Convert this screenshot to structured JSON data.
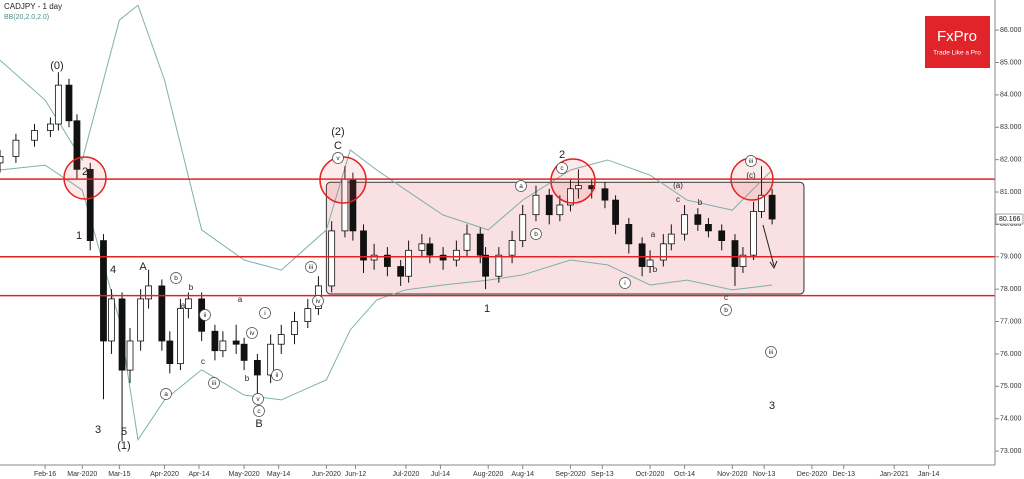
{
  "chart_data": {
    "type": "candlestick",
    "title": "CADJPY - 1 day",
    "subtitle": "BB(20,2.0,2.0)",
    "brand": "FxPro",
    "brand_tagline": "Trade Like a Pro",
    "xlim": [
      "2020-01-30",
      "2021-02-08"
    ],
    "xticks": [
      {
        "value": "2020-02-16",
        "label": "Feb-16"
      },
      {
        "value": "2020-03-01",
        "label": "Mar-2020"
      },
      {
        "value": "2020-03-15",
        "label": "Mar-15"
      },
      {
        "value": "2020-04-01",
        "label": "Apr-2020"
      },
      {
        "value": "2020-04-14",
        "label": "Apr-14"
      },
      {
        "value": "2020-05-01",
        "label": "May-2020"
      },
      {
        "value": "2020-05-14",
        "label": "May-14"
      },
      {
        "value": "2020-06-01",
        "label": "Jun-2020"
      },
      {
        "value": "2020-06-12",
        "label": "Jun-12"
      },
      {
        "value": "2020-07-01",
        "label": "Jul-2020"
      },
      {
        "value": "2020-07-14",
        "label": "Jul-14"
      },
      {
        "value": "2020-08-01",
        "label": "Aug-2020"
      },
      {
        "value": "2020-08-14",
        "label": "Aug-14"
      },
      {
        "value": "2020-09-01",
        "label": "Sep-2020"
      },
      {
        "value": "2020-09-13",
        "label": "Sep-13"
      },
      {
        "value": "2020-10-01",
        "label": "Oct-2020"
      },
      {
        "value": "2020-10-14",
        "label": "Oct-14"
      },
      {
        "value": "2020-11-01",
        "label": "Nov-2020"
      },
      {
        "value": "2020-11-13",
        "label": "Nov-13"
      },
      {
        "value": "2020-12-01",
        "label": "Dec-2020"
      },
      {
        "value": "2020-12-13",
        "label": "Dec-13"
      },
      {
        "value": "2021-01-01",
        "label": "Jan-2021"
      },
      {
        "value": "2021-01-14",
        "label": "Jan-14"
      }
    ],
    "ylim": [
      72.57,
      86.93
    ],
    "yticks": [
      {
        "value": 73,
        "label": "73.000"
      },
      {
        "value": 74,
        "label": "74.000"
      },
      {
        "value": 75,
        "label": "75.000"
      },
      {
        "value": 76,
        "label": "76.000"
      },
      {
        "value": 77,
        "label": "77.000"
      },
      {
        "value": 78,
        "label": "78.000"
      },
      {
        "value": 79,
        "label": "79.000"
      },
      {
        "value": 80,
        "label": "80.000"
      },
      {
        "value": 81,
        "label": "81.000"
      },
      {
        "value": 82,
        "label": "82.000"
      },
      {
        "value": 83,
        "label": "83.000"
      },
      {
        "value": 84,
        "label": "84.000"
      },
      {
        "value": 85,
        "label": "85.000"
      },
      {
        "value": 86,
        "label": "86.000"
      }
    ],
    "last_price": {
      "value": 80.166,
      "label": "80.166"
    },
    "up_color": "#ffffff",
    "down_color": "#111111",
    "x": [
      "2020-01-30",
      "2020-02-05",
      "2020-02-12",
      "2020-02-18",
      "2020-02-21",
      "2020-02-25",
      "2020-02-28",
      "2020-03-04",
      "2020-03-09",
      "2020-03-12",
      "2020-03-16",
      "2020-03-19",
      "2020-03-23",
      "2020-03-26",
      "2020-03-31",
      "2020-04-03",
      "2020-04-07",
      "2020-04-10",
      "2020-04-15",
      "2020-04-20",
      "2020-04-23",
      "2020-04-28",
      "2020-05-01",
      "2020-05-06",
      "2020-05-11",
      "2020-05-15",
      "2020-05-20",
      "2020-05-25",
      "2020-05-29",
      "2020-06-03",
      "2020-06-08",
      "2020-06-11",
      "2020-06-15",
      "2020-06-19",
      "2020-06-24",
      "2020-06-29",
      "2020-07-02",
      "2020-07-07",
      "2020-07-10",
      "2020-07-15",
      "2020-07-20",
      "2020-07-24",
      "2020-07-29",
      "2020-07-31",
      "2020-08-05",
      "2020-08-10",
      "2020-08-14",
      "2020-08-19",
      "2020-08-24",
      "2020-08-28",
      "2020-09-01",
      "2020-09-04",
      "2020-09-09",
      "2020-09-14",
      "2020-09-18",
      "2020-09-23",
      "2020-09-28",
      "2020-10-01",
      "2020-10-06",
      "2020-10-09",
      "2020-10-14",
      "2020-10-19",
      "2020-10-23",
      "2020-10-28",
      "2020-11-02",
      "2020-11-05",
      "2020-11-09",
      "2020-11-12",
      "2020-11-16"
    ],
    "open": [
      81.9,
      82.1,
      82.6,
      82.9,
      83.1,
      84.3,
      83.2,
      81.7,
      79.5,
      76.4,
      77.7,
      75.5,
      76.4,
      77.7,
      78.1,
      76.4,
      75.7,
      77.4,
      77.7,
      76.7,
      76.1,
      76.4,
      76.3,
      75.8,
      75.35,
      76.3,
      76.6,
      77.0,
      77.4,
      78.1,
      79.8,
      81.4,
      79.8,
      78.9,
      79.05,
      78.7,
      78.4,
      79.2,
      79.4,
      79.05,
      78.9,
      79.2,
      79.7,
      79.05,
      78.4,
      79.05,
      79.5,
      80.3,
      80.9,
      80.3,
      80.6,
      81.1,
      81.2,
      81.1,
      80.75,
      80.0,
      79.4,
      78.7,
      78.9,
      79.4,
      79.7,
      80.3,
      80.0,
      79.8,
      79.5,
      78.7,
      79.05,
      80.4,
      80.9
    ],
    "high": [
      82.3,
      82.8,
      83.1,
      83.3,
      84.7,
      84.5,
      83.4,
      81.9,
      79.7,
      78.0,
      77.9,
      76.8,
      78.0,
      78.6,
      78.3,
      76.7,
      77.7,
      77.9,
      77.9,
      76.9,
      76.7,
      76.9,
      76.5,
      76.0,
      76.6,
      76.9,
      77.3,
      77.7,
      78.4,
      80.1,
      81.8,
      81.6,
      80.0,
      79.4,
      79.3,
      78.9,
      79.5,
      79.7,
      79.6,
      79.3,
      79.5,
      80.0,
      79.9,
      79.3,
      79.3,
      79.8,
      80.6,
      81.2,
      81.1,
      80.9,
      81.4,
      81.7,
      81.4,
      81.3,
      80.9,
      80.2,
      79.6,
      79.2,
      79.7,
      80.0,
      80.6,
      80.5,
      80.2,
      80.0,
      79.7,
      79.3,
      80.7,
      81.8,
      81.1
    ],
    "low": [
      81.6,
      81.9,
      82.4,
      82.7,
      82.9,
      83.0,
      81.4,
      79.2,
      74.6,
      76.0,
      73.3,
      75.1,
      76.1,
      77.4,
      76.1,
      75.4,
      75.5,
      77.1,
      76.4,
      75.8,
      75.9,
      76.0,
      75.5,
      74.7,
      75.1,
      76.0,
      76.3,
      76.8,
      77.2,
      77.9,
      79.6,
      79.5,
      78.5,
      78.6,
      78.4,
      78.1,
      78.2,
      79.0,
      78.8,
      78.6,
      78.7,
      79.0,
      78.8,
      78.0,
      78.2,
      78.8,
      79.3,
      80.1,
      80.0,
      80.1,
      80.4,
      80.8,
      80.8,
      80.5,
      79.7,
      79.1,
      78.4,
      78.5,
      78.7,
      79.2,
      79.5,
      79.8,
      79.6,
      79.2,
      78.1,
      78.5,
      78.9,
      80.2,
      80.0
    ],
    "close": [
      82.1,
      82.6,
      82.9,
      83.1,
      84.3,
      83.2,
      81.7,
      79.5,
      76.4,
      77.7,
      75.5,
      76.4,
      77.7,
      78.1,
      76.4,
      75.7,
      77.4,
      77.7,
      76.7,
      76.1,
      76.4,
      76.3,
      75.8,
      75.35,
      76.3,
      76.6,
      77.0,
      77.4,
      78.1,
      79.8,
      81.4,
      79.8,
      78.9,
      79.05,
      78.7,
      78.4,
      79.2,
      79.4,
      79.05,
      78.9,
      79.2,
      79.7,
      79.05,
      78.4,
      79.05,
      79.5,
      80.3,
      80.9,
      80.3,
      80.6,
      81.1,
      81.2,
      81.1,
      80.75,
      80.0,
      79.4,
      78.7,
      78.9,
      79.4,
      79.7,
      80.3,
      80.0,
      79.8,
      79.5,
      78.7,
      79.05,
      80.4,
      80.9,
      80.166
    ],
    "bands": {
      "color": "#7fb0ac",
      "x": [
        "2020-01-30",
        "2020-02-16",
        "2020-03-01",
        "2020-03-15",
        "2020-03-22",
        "2020-04-01",
        "2020-04-15",
        "2020-05-01",
        "2020-05-15",
        "2020-06-01",
        "2020-06-10",
        "2020-06-20",
        "2020-07-01",
        "2020-07-15",
        "2020-08-01",
        "2020-08-14",
        "2020-09-01",
        "2020-09-15",
        "2020-10-01",
        "2020-10-15",
        "2020-11-01",
        "2020-11-16"
      ],
      "upper": [
        85.07,
        83.84,
        81.99,
        86.31,
        86.77,
        84.46,
        79.83,
        78.9,
        78.59,
        79.83,
        82.3,
        81.68,
        81.06,
        80.29,
        79.83,
        80.75,
        81.68,
        81.99,
        81.52,
        80.75,
        80.44,
        81.68
      ],
      "lower": [
        81.68,
        81.83,
        81.06,
        77.05,
        73.35,
        74.58,
        75.51,
        74.73,
        74.58,
        75.2,
        76.74,
        77.67,
        77.98,
        78.13,
        78.28,
        78.44,
        78.9,
        78.75,
        78.13,
        78.28,
        77.98,
        78.13
      ]
    },
    "levels": [
      81.4,
      79.0,
      77.8
    ],
    "level_color": "#e32222",
    "zone": {
      "x": [
        "2020-06-01",
        "2020-11-28"
      ],
      "y": [
        81.3,
        77.85
      ]
    },
    "annotations": [
      {
        "text": "(0)",
        "circled": false
      },
      {
        "text": "2",
        "circled": false
      },
      {
        "text": "1",
        "circled": false
      },
      {
        "text": "4",
        "circled": false
      },
      {
        "text": "A",
        "circled": false
      },
      {
        "text": "3",
        "circled": false
      },
      {
        "text": "5",
        "circled": false
      },
      {
        "text": "(1)",
        "circled": false
      },
      {
        "text": "(2)",
        "circled": false
      },
      {
        "text": "C",
        "circled": false
      },
      {
        "text": "B",
        "circled": false
      },
      {
        "text": "2",
        "circled": false
      },
      {
        "text": "1",
        "circled": false
      },
      {
        "text": "3",
        "circled": false
      },
      {
        "text": "v",
        "circled": true
      },
      {
        "text": "iii",
        "circled": true
      },
      {
        "text": "iv",
        "circled": true
      },
      {
        "text": "b",
        "circled": true
      },
      {
        "text": "a",
        "circled": true
      },
      {
        "text": "ii",
        "circled": true
      },
      {
        "text": "iii",
        "circled": true
      },
      {
        "text": "v",
        "circled": true
      },
      {
        "text": "c",
        "circled": true
      },
      {
        "text": "i",
        "circled": true
      },
      {
        "text": "iv",
        "circled": true
      },
      {
        "text": "ii",
        "circled": true
      },
      {
        "text": "a",
        "circled": true
      },
      {
        "text": "b",
        "circled": true
      },
      {
        "text": "c",
        "circled": true
      },
      {
        "text": "i",
        "circled": true
      },
      {
        "text": "iii",
        "circled": true
      },
      {
        "text": "b",
        "circled": true
      },
      {
        "text": "iii",
        "circled": true
      },
      {
        "text": "b",
        "circled": false
      },
      {
        "text": "a",
        "circled": false
      },
      {
        "text": "c",
        "circled": false
      },
      {
        "text": "b",
        "circled": false
      },
      {
        "text": "a",
        "circled": false
      },
      {
        "text": "(a)",
        "circled": false
      },
      {
        "text": "(c)",
        "circled": false
      },
      {
        "text": "c",
        "circled": false
      },
      {
        "text": "b",
        "circled": false
      },
      {
        "text": "a",
        "circled": false
      },
      {
        "text": "b",
        "circled": false
      },
      {
        "text": "c",
        "circled": false
      }
    ]
  }
}
